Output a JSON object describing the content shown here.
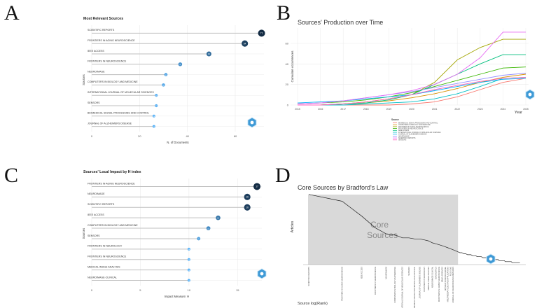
{
  "panels": {
    "a": "A",
    "b": "B",
    "c": "C",
    "d": "D"
  },
  "colors": {
    "dark": "#132b43",
    "light": "#56b1f7",
    "segment": "#bfbfbf",
    "grid": "#ebebeb",
    "shade": "#d9d9d9",
    "logo": "#3f9ad6"
  },
  "chart_data": [
    {
      "id": "A",
      "type": "lollipop",
      "title": "Most Relevant Sources",
      "xlabel": "N. of Documents",
      "ylabel": "Sources",
      "xlim": [
        0,
        72
      ],
      "xticks": [
        0,
        20,
        40,
        60
      ],
      "categories": [
        "SCIENTIFIC REPORTS",
        "FRONTIERS IN AGING NEUROSCIENCE",
        "IEEE ACCESS",
        "FRONTIERS IN NEUROSCIENCE",
        "NEUROIMAGE",
        "COMPUTERS IN BIOLOGY AND MEDICINE",
        "INTERNATIONAL JOURNAL OF MOLECULAR SCIENCES",
        "SENSORS",
        "BIOMEDICAL SIGNAL PROCESSING AND CONTROL",
        "JOURNAL OF ALZHEIMERS DISEASE"
      ],
      "values": [
        71,
        64,
        49,
        37,
        31,
        30,
        27,
        27,
        26,
        26
      ]
    },
    {
      "id": "B",
      "type": "line",
      "title": "Sources' Production over Time",
      "xlabel": "Year",
      "ylabel": "Cumulate occurrences",
      "x": [
        2015,
        2016,
        2017,
        2018,
        2019,
        2020,
        2021,
        2022,
        2023,
        2024,
        2025
      ],
      "ylim": [
        0,
        75
      ],
      "yticks": [
        0,
        20,
        40,
        60
      ],
      "legend_title": "Source",
      "series": [
        {
          "name": "BIOMEDICAL SIGNAL PROCESSING AND CONTROL",
          "color": "#f8766d",
          "values": [
            0,
            0,
            0,
            0,
            0,
            1,
            3,
            8,
            15,
            22,
            26
          ]
        },
        {
          "name": "COMPUTERS IN BIOLOGY AND MEDICINE",
          "color": "#d89000",
          "values": [
            0,
            0,
            1,
            2,
            4,
            7,
            11,
            16,
            22,
            27,
            30
          ]
        },
        {
          "name": "FRONTIERS IN AGING NEUROSCIENCE",
          "color": "#a3a500",
          "values": [
            0,
            0,
            1,
            3,
            6,
            10,
            22,
            44,
            56,
            64,
            64
          ]
        },
        {
          "name": "FRONTIERS IN NEUROSCIENCE",
          "color": "#39b600",
          "values": [
            1,
            2,
            3,
            5,
            8,
            12,
            18,
            24,
            30,
            36,
            37
          ]
        },
        {
          "name": "IEEE ACCESS",
          "color": "#00bf7d",
          "values": [
            0,
            0,
            1,
            2,
            5,
            10,
            20,
            30,
            40,
            49,
            49
          ]
        },
        {
          "name": "INTERNATIONAL JOURNAL OF MOLECULAR SCIENCES",
          "color": "#00bfc4",
          "values": [
            0,
            0,
            0,
            1,
            2,
            3,
            6,
            11,
            18,
            26,
            27
          ]
        },
        {
          "name": "JOURNAL OF ALZHEIMERS DISEASE",
          "color": "#00b0f6",
          "values": [
            2,
            3,
            4,
            6,
            8,
            10,
            14,
            18,
            22,
            25,
            26
          ]
        },
        {
          "name": "NEUROIMAGE",
          "color": "#9590ff",
          "values": [
            1,
            2,
            4,
            7,
            10,
            13,
            17,
            21,
            25,
            29,
            31
          ]
        },
        {
          "name": "SCIENTIFIC REPORTS",
          "color": "#e76bf3",
          "values": [
            1,
            2,
            4,
            7,
            10,
            14,
            20,
            30,
            46,
            71,
            71
          ]
        },
        {
          "name": "SENSORS",
          "color": "#ff62bc",
          "values": [
            0,
            0,
            1,
            3,
            6,
            10,
            15,
            19,
            23,
            26,
            27
          ]
        }
      ]
    },
    {
      "id": "C",
      "type": "lollipop",
      "title": "Sources' Local Impact by H index",
      "xlabel": "Impact Measure: H",
      "ylabel": "Sources",
      "xlim": [
        0,
        17.5
      ],
      "xticks": [
        0,
        5,
        10,
        15
      ],
      "categories": [
        "FRONTIERS IN AGING NEUROSCIENCE",
        "NEUROIMAGE",
        "SCIENTIFIC REPORTS",
        "IEEE ACCESS",
        "COMPUTERS IN BIOLOGY AND MEDICINE",
        "SENSORS",
        "FRONTIERS IN NEUROLOGY",
        "FRONTIERS IN NEUROSCIENCE",
        "MEDICAL IMAGE ANALYSIS",
        "NEUROIMAGE-CLINICAL"
      ],
      "values": [
        17,
        16,
        16,
        13,
        12,
        11,
        10,
        10,
        10,
        10
      ]
    },
    {
      "id": "D",
      "type": "line",
      "title": "Core Sources by Bradford's Law",
      "xlabel": "Source log(Rank)",
      "ylabel": "Articles",
      "zone_label": [
        "Core",
        "Sources"
      ],
      "categories": [
        "SCIENTIFIC REPORTS",
        "FRONTIERS IN AGING NEUROSCIENCE",
        "IEEE ACCESS",
        "FRONTIERS IN NEUROSCIENCE",
        "NEUROIMAGE",
        "COMPUTERS IN BIOLOGY AND MEDICINE",
        "INTERNATIONAL JOURNAL OF MOLECULAR SCIENCES",
        "SENSORS",
        "BIOMEDICAL SIGNAL PROCESSING AND CONTROL",
        "JOURNAL OF ALZHEIMERS DISEASE",
        "FRONTIERS IN NEUROLOGY",
        "MEDICAL IMAGE ANALYSIS",
        "NEUROIMAGE-CLINICAL",
        "DIAGNOSTICS",
        "FRONTIERS IN HUMAN NEUROSCIENCE",
        "BRAIN SCIENCES",
        "APPLIED SCIENCES-BASEL",
        "MULTIMEDIA TOOLS AND APPLICATIONS",
        "PLOS ONE",
        "JOURNAL OF NEUROSCIENCE METHODS"
      ],
      "values": [
        71,
        64,
        49,
        37,
        31,
        30,
        27,
        27,
        26,
        26,
        25,
        24,
        22,
        21,
        20,
        19,
        18,
        17,
        16,
        15
      ],
      "tail_values": [
        14,
        13,
        12,
        12,
        11,
        11,
        10,
        10,
        10,
        9,
        9,
        9,
        8,
        8,
        8,
        8,
        7,
        7,
        7,
        7,
        6,
        6,
        6,
        6,
        6,
        5,
        5,
        5,
        5,
        5,
        5,
        4,
        4,
        4,
        4,
        4,
        4,
        4,
        3,
        3,
        3,
        3,
        3,
        3,
        3,
        3,
        3,
        2,
        2,
        2,
        2,
        2,
        2,
        2,
        2,
        2,
        2,
        2,
        2,
        2
      ],
      "ylim": [
        0,
        75
      ]
    }
  ]
}
